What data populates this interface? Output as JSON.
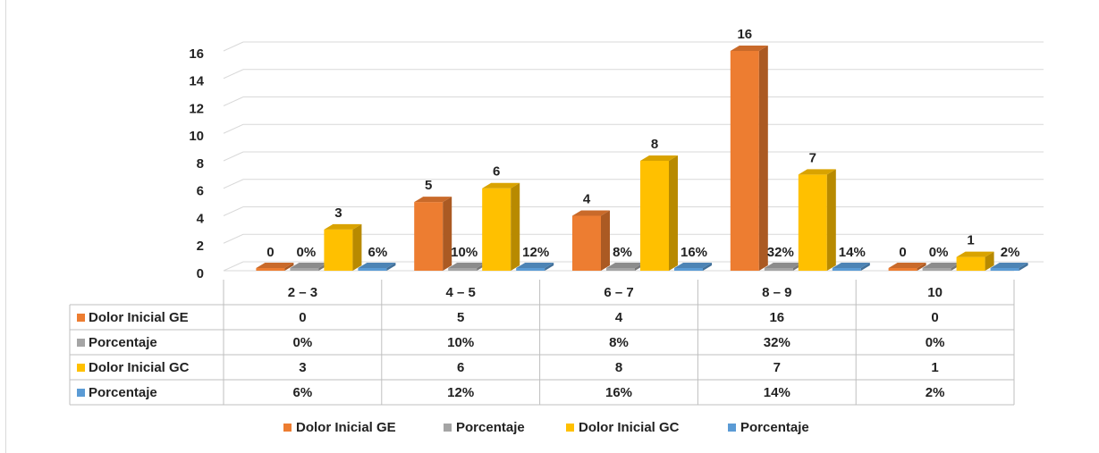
{
  "chart_data": {
    "type": "bar",
    "categories": [
      "2 – 3",
      "4 – 5",
      "6 – 7",
      "8 – 9",
      "10"
    ],
    "ylim": [
      0,
      16
    ],
    "yticks": [
      "0",
      "2",
      "4",
      "6",
      "8",
      "10",
      "12",
      "14",
      "16"
    ],
    "grid": true,
    "legend_position": "bottom",
    "series": [
      {
        "name": "Dolor Inicial GE",
        "color": "#ED7D31",
        "values": [
          0,
          5,
          4,
          16,
          0
        ],
        "labels": [
          "0",
          "5",
          "4",
          "16",
          "0"
        ]
      },
      {
        "name": "Porcentaje",
        "color": "#A5A5A5",
        "values": [
          0,
          0.1,
          0.08,
          0.32,
          0
        ],
        "labels": [
          "0%",
          "10%",
          "8%",
          "32%",
          "0%"
        ]
      },
      {
        "name": "Dolor Inicial GC",
        "color": "#FFC000",
        "values": [
          3,
          6,
          8,
          7,
          1
        ],
        "labels": [
          "3",
          "6",
          "8",
          "7",
          "1"
        ]
      },
      {
        "name": "Porcentaje",
        "color": "#5B9BD5",
        "values": [
          0.06,
          0.12,
          0.16,
          0.14,
          0.02
        ],
        "labels": [
          "6%",
          "12%",
          "16%",
          "14%",
          "2%"
        ]
      }
    ]
  }
}
